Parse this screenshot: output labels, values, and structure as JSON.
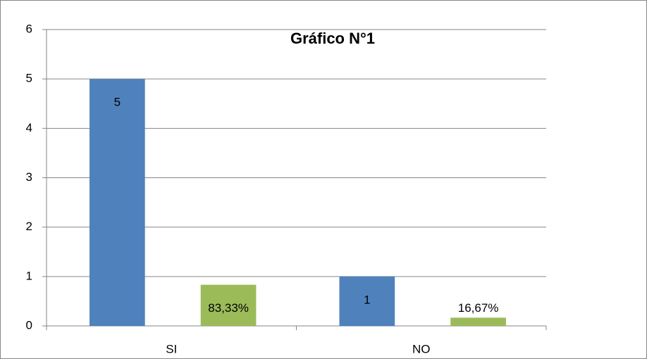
{
  "chart_data": {
    "type": "bar",
    "title": "Gráfico N°1",
    "categories": [
      "SI",
      "NO"
    ],
    "series": [
      {
        "color": "#4f81bd",
        "values": [
          5,
          1
        ],
        "value_labels": [
          "5",
          "1"
        ]
      },
      {
        "color": "#9bbb59",
        "values": [
          0.8333,
          0.1667
        ],
        "value_labels": [
          "83,33%",
          "16,67%"
        ]
      }
    ],
    "ylim": [
      0,
      6
    ],
    "yticks": [
      0,
      1,
      2,
      3,
      4,
      5,
      6
    ],
    "grid": true
  }
}
